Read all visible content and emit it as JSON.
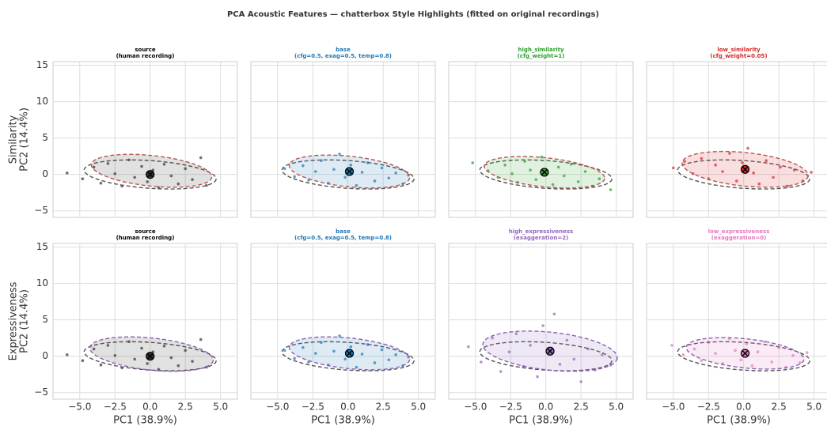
{
  "title": "PCA Acoustic Features — chatterbox Style Highlights (fitted on original recordings)",
  "chart_data": [
    {
      "type": "scatter",
      "title": [
        "source",
        "(human recording)"
      ],
      "title_color": "#000000",
      "ylabel": [
        "Similarity",
        "PC2 (14.4%)"
      ],
      "xlim": [
        -6.9,
        6.2
      ],
      "ylim": [
        -5.9,
        15.5
      ],
      "xticks": [
        {
          "value": -5,
          "label": "−5.0"
        },
        {
          "value": -2.5,
          "label": "−2.5"
        },
        {
          "value": 0,
          "label": "0.0"
        },
        {
          "value": 2.5,
          "label": "2.5"
        },
        {
          "value": 5,
          "label": "5.0"
        }
      ],
      "yticks": [
        {
          "value": -5,
          "label": "−5"
        },
        0,
        5,
        10,
        15
      ],
      "grid": true,
      "series": [
        {
          "color": "#333333",
          "x": [
            -5.9,
            -4.8,
            -4.0,
            -3.5,
            -3.0,
            -2.5,
            -2.0,
            -1.5,
            -1.1,
            -0.6,
            -0.2,
            0.2,
            0.6,
            1.0,
            1.5,
            2.0,
            2.5,
            3.0,
            3.6,
            4.0
          ],
          "y": [
            0.2,
            -0.6,
            1.0,
            -1.2,
            1.5,
            0.1,
            -1.6,
            2.0,
            -0.4,
            1.1,
            -1.0,
            0.6,
            -1.8,
            1.4,
            -0.2,
            -1.3,
            0.8,
            -0.7,
            2.3,
            -1.5
          ]
        }
      ],
      "centroid": [
        0,
        0
      ],
      "ellipses": [
        {
          "center": [
            0,
            0
          ],
          "width": 9.4,
          "height": 3.8,
          "angle": -4,
          "color": "#555555"
        },
        {
          "center": [
            0.1,
            0.5
          ],
          "width": 8.6,
          "height": 4.2,
          "angle": -6,
          "color": "#b5574f"
        }
      ]
    },
    {
      "type": "scatter",
      "title": [
        "base",
        "(cfg=0.5, exag=0.5, temp=0.8)"
      ],
      "title_color": "#1f77b4",
      "xlim": [
        -6.9,
        6.2
      ],
      "ylim": [
        -5.9,
        15.5
      ],
      "xticks": [
        {
          "value": -5,
          "label": "−5.0"
        },
        {
          "value": -2.5,
          "label": "−2.5"
        },
        {
          "value": 0,
          "label": "0.0"
        },
        {
          "value": 2.5,
          "label": "2.5"
        },
        {
          "value": 5,
          "label": "5.0"
        }
      ],
      "yticks": [
        {
          "value": -5,
          "label": "−5"
        },
        0,
        5,
        10,
        15
      ],
      "grid": true,
      "series": [
        {
          "color": "#1f77b4",
          "x": [
            -4.5,
            -3.8,
            -3.2,
            -2.8,
            -2.3,
            -1.9,
            -1.4,
            -1.0,
            -0.6,
            -0.2,
            0.2,
            0.6,
            1.0,
            1.4,
            1.9,
            2.4,
            2.9,
            3.4,
            3.9,
            4.3
          ],
          "y": [
            0.8,
            -0.3,
            1.2,
            -0.8,
            0.4,
            1.9,
            -1.2,
            0.7,
            2.8,
            -0.4,
            1.3,
            -1.5,
            0.3,
            1.6,
            -0.9,
            0.9,
            -0.5,
            0.2,
            -1.3,
            -0.1
          ]
        }
      ],
      "centroid": [
        0.1,
        0.4
      ],
      "ellipses": [
        {
          "center": [
            0,
            0
          ],
          "width": 9.4,
          "height": 3.8,
          "angle": -4,
          "color": "#555555"
        },
        {
          "center": [
            0.1,
            0.4
          ],
          "width": 8.6,
          "height": 4.2,
          "angle": -6,
          "color": "#b5574f"
        }
      ]
    },
    {
      "type": "scatter",
      "title": [
        "high_similarity",
        "(cfg_weight=1)"
      ],
      "title_color": "#2ca02c",
      "xlim": [
        -6.9,
        6.2
      ],
      "ylim": [
        -5.9,
        15.5
      ],
      "xticks": [
        {
          "value": -5,
          "label": "−5.0"
        },
        {
          "value": -2.5,
          "label": "−2.5"
        },
        {
          "value": 0,
          "label": "0.0"
        },
        {
          "value": 2.5,
          "label": "2.5"
        },
        {
          "value": 5,
          "label": "5.0"
        }
      ],
      "yticks": [
        {
          "value": -5,
          "label": "−5"
        },
        0,
        5,
        10,
        15
      ],
      "grid": true,
      "series": [
        {
          "color": "#2ca02c",
          "x": [
            -5.2,
            -4.1,
            -3.4,
            -2.9,
            -2.4,
            -2.0,
            -1.5,
            -1.1,
            -0.7,
            -0.3,
            0.1,
            0.5,
            0.9,
            1.3,
            1.8,
            2.3,
            2.8,
            3.3,
            3.8,
            4.6
          ],
          "y": [
            1.6,
            0.5,
            -0.4,
            1.3,
            0.1,
            -1.1,
            1.8,
            0.6,
            -0.7,
            2.4,
            0.3,
            -1.4,
            1.0,
            -0.2,
            1.4,
            -1.0,
            0.4,
            -1.6,
            -0.6,
            -2.1
          ]
        }
      ],
      "centroid": [
        -0.1,
        0.3
      ],
      "ellipses": [
        {
          "center": [
            0,
            0
          ],
          "width": 9.4,
          "height": 3.8,
          "angle": -4,
          "color": "#555555"
        },
        {
          "center": [
            -0.1,
            0.3
          ],
          "width": 8.6,
          "height": 4.0,
          "angle": -6,
          "color": "#b5574f"
        }
      ]
    },
    {
      "type": "scatter",
      "title": [
        "low_similarity",
        "(cfg_weight=0.05)"
      ],
      "title_color": "#d62728",
      "xlim": [
        -6.9,
        6.2
      ],
      "ylim": [
        -5.9,
        15.5
      ],
      "xticks": [
        {
          "value": -5,
          "label": "−5.0"
        },
        {
          "value": -2.5,
          "label": "−2.5"
        },
        {
          "value": 0,
          "label": "0.0"
        },
        {
          "value": 2.5,
          "label": "2.5"
        },
        {
          "value": 5,
          "label": "5.0"
        }
      ],
      "yticks": [
        {
          "value": -5,
          "label": "−5"
        },
        0,
        5,
        10,
        15
      ],
      "grid": true,
      "series": [
        {
          "color": "#d62728",
          "x": [
            -5.0,
            -4.2,
            -3.6,
            -3.0,
            -2.5,
            -2.0,
            -1.5,
            -1.0,
            -0.5,
            -0.1,
            0.3,
            0.7,
            1.1,
            1.6,
            2.1,
            2.6,
            3.1,
            3.6,
            4.2,
            4.8
          ],
          "y": [
            0.9,
            1.8,
            0.1,
            2.2,
            -0.6,
            1.3,
            0.4,
            2.9,
            -0.9,
            1.6,
            3.6,
            0.2,
            -1.3,
            1.9,
            -0.4,
            1.0,
            -1.6,
            0.6,
            -0.9,
            0.3
          ]
        }
      ],
      "centroid": [
        0.1,
        0.7
      ],
      "ellipses": [
        {
          "center": [
            0,
            0
          ],
          "width": 9.4,
          "height": 3.8,
          "angle": -4,
          "color": "#555555"
        },
        {
          "center": [
            0.1,
            0.7
          ],
          "width": 9.0,
          "height": 4.6,
          "angle": -6,
          "color": "#b5574f"
        }
      ]
    },
    {
      "type": "scatter",
      "title": [
        "source",
        "(human recording)"
      ],
      "title_color": "#000000",
      "ylabel": [
        "Expressiveness",
        "PC2 (14.4%)"
      ],
      "xlabel": "PC1 (38.9%)",
      "xlim": [
        -6.9,
        6.2
      ],
      "ylim": [
        -5.9,
        15.5
      ],
      "xticks": [
        {
          "value": -5,
          "label": "−5.0"
        },
        {
          "value": -2.5,
          "label": "−2.5"
        },
        {
          "value": 0,
          "label": "0.0"
        },
        {
          "value": 2.5,
          "label": "2.5"
        },
        {
          "value": 5,
          "label": "5.0"
        }
      ],
      "yticks": [
        {
          "value": -5,
          "label": "−5"
        },
        0,
        5,
        10,
        15
      ],
      "grid": true,
      "series": [
        {
          "color": "#333333",
          "x": [
            -5.9,
            -4.8,
            -4.0,
            -3.5,
            -3.0,
            -2.5,
            -2.0,
            -1.5,
            -1.1,
            -0.6,
            -0.2,
            0.2,
            0.6,
            1.0,
            1.5,
            2.0,
            2.5,
            3.0,
            3.6,
            4.0
          ],
          "y": [
            0.2,
            -0.6,
            1.0,
            -1.2,
            1.5,
            0.1,
            -1.6,
            2.0,
            -0.4,
            1.1,
            -1.0,
            0.6,
            -1.8,
            1.4,
            -0.2,
            -1.3,
            0.8,
            -0.7,
            2.3,
            -1.5
          ]
        }
      ],
      "centroid": [
        0,
        0
      ],
      "ellipses": [
        {
          "center": [
            0,
            0
          ],
          "width": 9.4,
          "height": 3.8,
          "angle": -4,
          "color": "#555555"
        },
        {
          "center": [
            0.1,
            0.3
          ],
          "width": 8.8,
          "height": 4.4,
          "angle": -6,
          "color": "#8e5fb5"
        }
      ]
    },
    {
      "type": "scatter",
      "title": [
        "base",
        "(cfg=0.5, exag=0.5, temp=0.8)"
      ],
      "title_color": "#1f77b4",
      "xlabel": "PC1 (38.9%)",
      "xlim": [
        -6.9,
        6.2
      ],
      "ylim": [
        -5.9,
        15.5
      ],
      "xticks": [
        {
          "value": -5,
          "label": "−5.0"
        },
        {
          "value": -2.5,
          "label": "−2.5"
        },
        {
          "value": 0,
          "label": "0.0"
        },
        {
          "value": 2.5,
          "label": "2.5"
        },
        {
          "value": 5,
          "label": "5.0"
        }
      ],
      "yticks": [
        {
          "value": -5,
          "label": "−5"
        },
        0,
        5,
        10,
        15
      ],
      "grid": true,
      "series": [
        {
          "color": "#1f77b4",
          "x": [
            -4.5,
            -3.8,
            -3.2,
            -2.8,
            -2.3,
            -1.9,
            -1.4,
            -1.0,
            -0.6,
            -0.2,
            0.2,
            0.6,
            1.0,
            1.4,
            1.9,
            2.4,
            2.9,
            3.4,
            3.9,
            4.3
          ],
          "y": [
            0.8,
            -0.3,
            1.2,
            -0.8,
            0.4,
            1.9,
            -1.2,
            0.7,
            2.8,
            -0.4,
            1.3,
            -1.5,
            0.3,
            1.6,
            -0.9,
            0.9,
            -0.5,
            0.2,
            -1.3,
            -0.1
          ]
        }
      ],
      "centroid": [
        0.1,
        0.4
      ],
      "ellipses": [
        {
          "center": [
            0,
            0
          ],
          "width": 9.4,
          "height": 3.8,
          "angle": -4,
          "color": "#555555"
        },
        {
          "center": [
            0.1,
            0.4
          ],
          "width": 8.6,
          "height": 4.2,
          "angle": -6,
          "color": "#8e5fb5"
        }
      ]
    },
    {
      "type": "scatter",
      "title": [
        "high_expressiveness",
        "(exaggeration=2)"
      ],
      "title_color": "#9467bd",
      "xlabel": "PC1 (38.9%)",
      "xlim": [
        -6.9,
        6.2
      ],
      "ylim": [
        -5.9,
        15.5
      ],
      "xticks": [
        {
          "value": -5,
          "label": "−5.0"
        },
        {
          "value": -2.5,
          "label": "−2.5"
        },
        {
          "value": 0,
          "label": "0.0"
        },
        {
          "value": 2.5,
          "label": "2.5"
        },
        {
          "value": 5,
          "label": "5.0"
        }
      ],
      "yticks": [
        {
          "value": -5,
          "label": "−5"
        },
        0,
        5,
        10,
        15
      ],
      "grid": true,
      "series": [
        {
          "color": "#9467bd",
          "x": [
            -5.5,
            -4.6,
            -3.8,
            -3.2,
            -2.6,
            -2.1,
            -1.6,
            -1.1,
            -0.6,
            -0.2,
            0.2,
            0.6,
            1.0,
            1.5,
            2.0,
            2.5,
            3.0,
            3.5,
            4.0,
            4.6
          ],
          "y": [
            1.3,
            -0.8,
            2.5,
            -2.1,
            0.6,
            3.1,
            -1.4,
            1.5,
            -2.8,
            4.2,
            0.3,
            5.8,
            -1.1,
            2.2,
            -0.4,
            -3.5,
            1.0,
            -1.9,
            0.2,
            -1.2
          ]
        }
      ],
      "centroid": [
        0.3,
        0.7
      ],
      "ellipses": [
        {
          "center": [
            0,
            0
          ],
          "width": 9.4,
          "height": 3.8,
          "angle": -4,
          "color": "#555555"
        },
        {
          "center": [
            0.3,
            0.7
          ],
          "width": 9.6,
          "height": 5.2,
          "angle": -6,
          "color": "#8e5fb5"
        }
      ]
    },
    {
      "type": "scatter",
      "title": [
        "low_expressiveness",
        "(exaggeration=0)"
      ],
      "title_color": "#e377c2",
      "xlabel": "PC1 (38.9%)",
      "xlim": [
        -6.9,
        6.2
      ],
      "ylim": [
        -5.9,
        15.5
      ],
      "xticks": [
        {
          "value": -5,
          "label": "−5.0"
        },
        {
          "value": -2.5,
          "label": "−2.5"
        },
        {
          "value": 0,
          "label": "0.0"
        },
        {
          "value": 2.5,
          "label": "2.5"
        },
        {
          "value": 5,
          "label": "5.0"
        }
      ],
      "yticks": [
        {
          "value": -5,
          "label": "−5"
        },
        0,
        5,
        10,
        15
      ],
      "grid": true,
      "series": [
        {
          "color": "#e377c2",
          "x": [
            -5.1,
            -4.3,
            -3.5,
            -3.0,
            -2.5,
            -2.0,
            -1.5,
            -1.0,
            -0.6,
            -0.2,
            0.2,
            0.6,
            1.0,
            1.5,
            2.0,
            2.5,
            3.0,
            3.5,
            4.0,
            4.5
          ],
          "y": [
            1.5,
            0.2,
            1.0,
            -0.6,
            1.9,
            0.4,
            -1.0,
            2.4,
            0.8,
            -0.5,
            1.7,
            -1.3,
            0.6,
            2.0,
            -0.8,
            1.2,
            -1.5,
            0.1,
            -0.9,
            0.5
          ]
        }
      ],
      "centroid": [
        0.1,
        0.4
      ],
      "ellipses": [
        {
          "center": [
            0,
            0
          ],
          "width": 9.4,
          "height": 3.8,
          "angle": -4,
          "color": "#555555"
        },
        {
          "center": [
            0.1,
            0.4
          ],
          "width": 8.4,
          "height": 4.0,
          "angle": -6,
          "color": "#8e5fb5"
        }
      ]
    }
  ]
}
